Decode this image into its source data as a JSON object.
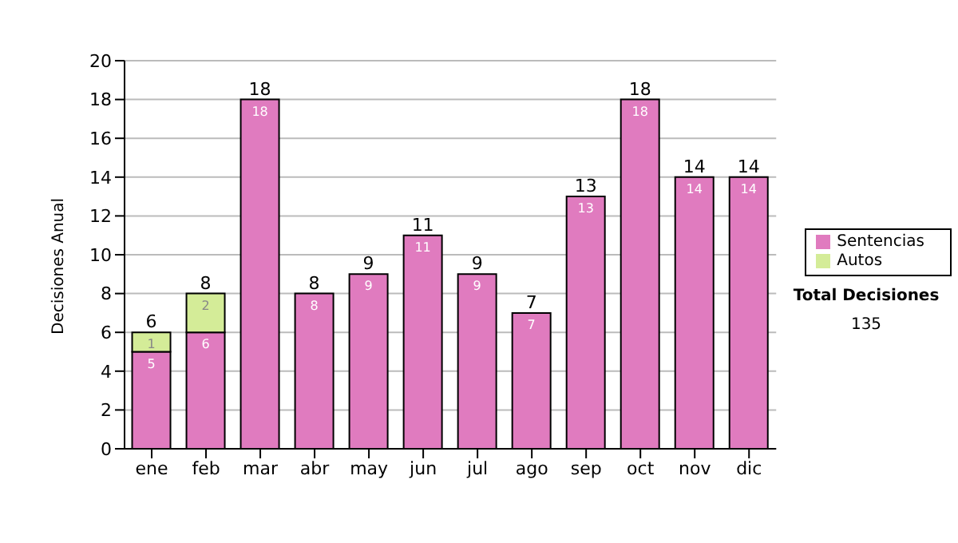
{
  "chart_data": {
    "type": "bar",
    "stacked": true,
    "ylabel": "Decisiones Anual",
    "categories": [
      "ene",
      "feb",
      "mar",
      "abr",
      "may",
      "jun",
      "jul",
      "ago",
      "sep",
      "oct",
      "nov",
      "dic"
    ],
    "series": [
      {
        "name": "Sentencias",
        "color": "#e07bbf",
        "values": [
          5,
          6,
          18,
          8,
          9,
          11,
          9,
          7,
          13,
          18,
          14,
          14
        ],
        "value_labels": [
          "5",
          "6",
          "18",
          "8",
          "9",
          "11",
          "9",
          "7",
          "13",
          "18",
          "14",
          "14"
        ]
      },
      {
        "name": "Autos",
        "color": "#d4ec98",
        "values": [
          1,
          2,
          0,
          0,
          0,
          0,
          0,
          0,
          0,
          0,
          0,
          0
        ],
        "value_labels": [
          "1",
          "2",
          null,
          null,
          null,
          null,
          null,
          null,
          null,
          null,
          null,
          null
        ]
      }
    ],
    "totals": [
      "6",
      "8",
      "18",
      "8",
      "9",
      "11",
      "9",
      "7",
      "13",
      "18",
      "14",
      "14"
    ],
    "ylim": [
      0,
      20
    ],
    "yticks": [
      0,
      2,
      4,
      6,
      8,
      10,
      12,
      14,
      16,
      18,
      20
    ],
    "grid": "y",
    "legend": "right",
    "annotations": [
      "Total Decisiones",
      "135"
    ]
  }
}
